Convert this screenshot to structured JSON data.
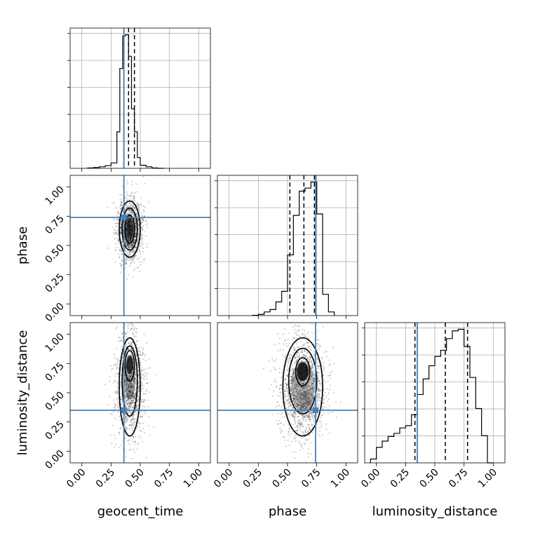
{
  "chart_data": {
    "type": "corner",
    "parameters": [
      "geocent_time",
      "phase",
      "luminosity_distance"
    ],
    "axis_ticks": [
      "0.00",
      "0.25",
      "0.50",
      "0.75",
      "1.00"
    ],
    "axis_range": [
      -0.1,
      1.1
    ],
    "true_values": {
      "geocent_time": 0.36,
      "phase": 0.74,
      "luminosity_distance": 0.35
    },
    "truth_color": "#4682b4",
    "quantiles": {
      "geocent_time": [
        0.36,
        0.4,
        0.45
      ],
      "phase": [
        0.52,
        0.64,
        0.73
      ],
      "luminosity_distance": [
        0.33,
        0.59,
        0.78
      ]
    },
    "histograms": {
      "geocent_time": {
        "bin_edges": [
          0.05,
          0.1,
          0.15,
          0.2,
          0.25,
          0.3,
          0.325,
          0.35,
          0.375,
          0.4,
          0.425,
          0.45,
          0.475,
          0.5,
          0.55,
          0.6,
          0.65,
          0.7
        ],
        "counts": [
          1,
          2,
          4,
          7,
          14,
          95,
          260,
          345,
          348,
          292,
          155,
          95,
          28,
          8,
          4,
          1,
          0
        ]
      },
      "phase": {
        "bin_edges": [
          0.2,
          0.25,
          0.3,
          0.35,
          0.4,
          0.45,
          0.5,
          0.55,
          0.6,
          0.65,
          0.7,
          0.75,
          0.8,
          0.85,
          0.9
        ],
        "counts": [
          1,
          4,
          12,
          20,
          45,
          80,
          200,
          330,
          410,
          420,
          440,
          335,
          70,
          12
        ]
      },
      "luminosity_distance": {
        "bin_edges": [
          -0.05,
          0.0,
          0.05,
          0.1,
          0.15,
          0.2,
          0.25,
          0.3,
          0.35,
          0.4,
          0.45,
          0.5,
          0.55,
          0.6,
          0.65,
          0.7,
          0.75,
          0.8,
          0.85,
          0.9,
          0.95,
          1.0
        ],
        "counts": [
          5,
          20,
          28,
          34,
          38,
          45,
          48,
          62,
          88,
          108,
          125,
          137,
          145,
          160,
          170,
          172,
          150,
          110,
          70,
          35,
          0
        ]
      }
    }
  }
}
